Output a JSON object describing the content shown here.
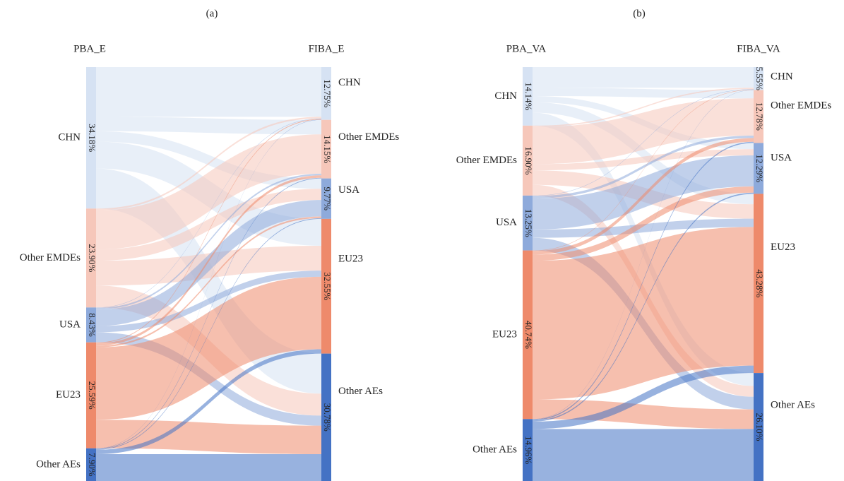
{
  "chart_data": [
    {
      "type": "sankey",
      "title": "(a)",
      "source_label": "PBA_E",
      "target_label": "FIBA_E",
      "categories": [
        "CHN",
        "Other EMDEs",
        "USA",
        "EU23",
        "Other AEs"
      ],
      "colors": [
        "#d6e2f3",
        "#f6c7ba",
        "#8eaadb",
        "#ee8a6b",
        "#4472c4"
      ],
      "source_values": [
        34.18,
        23.9,
        8.43,
        25.59,
        7.9
      ],
      "source_value_labels": [
        "34.18%",
        "23.90%",
        "8.43%",
        "25.59%",
        "7.90%"
      ],
      "target_values": [
        12.75,
        14.15,
        9.77,
        32.55,
        30.78
      ],
      "target_value_labels": [
        "12.75%",
        "14.15%",
        "9.77%",
        "32.55%",
        "30.78%"
      ],
      "flows": [
        [
          12.0,
          3.5,
          2.5,
          6.5,
          9.68
        ],
        [
          0.4,
          9.5,
          2.7,
          6.0,
          5.3
        ],
        [
          0.1,
          0.4,
          4.0,
          1.5,
          2.43
        ],
        [
          0.2,
          0.6,
          0.4,
          17.5,
          6.89
        ],
        [
          0.05,
          0.15,
          0.17,
          1.05,
          6.48
        ]
      ]
    },
    {
      "type": "sankey",
      "title": "(b)",
      "source_label": "PBA_VA",
      "target_label": "FIBA_VA",
      "categories": [
        "CHN",
        "Other EMDEs",
        "USA",
        "EU23",
        "Other AEs"
      ],
      "colors": [
        "#d6e2f3",
        "#f6c7ba",
        "#8eaadb",
        "#ee8a6b",
        "#4472c4"
      ],
      "source_values": [
        14.14,
        16.9,
        13.25,
        40.74,
        14.96
      ],
      "source_value_labels": [
        "14.14%",
        "16.90%",
        "13.25%",
        "40.74%",
        "14.96%"
      ],
      "target_values": [
        5.55,
        12.78,
        12.29,
        43.28,
        26.1
      ],
      "target_value_labels": [
        "5.55%",
        "12.78%",
        "12.29%",
        "43.28%",
        "26.10%"
      ],
      "flows": [
        [
          5.0,
          2.0,
          1.5,
          2.5,
          3.14
        ],
        [
          0.3,
          9.0,
          1.5,
          3.5,
          2.6
        ],
        [
          0.1,
          0.6,
          7.5,
          2.0,
          3.05
        ],
        [
          0.1,
          0.9,
          1.5,
          33.5,
          4.74
        ],
        [
          0.05,
          0.28,
          0.29,
          1.78,
          12.56
        ]
      ]
    }
  ]
}
